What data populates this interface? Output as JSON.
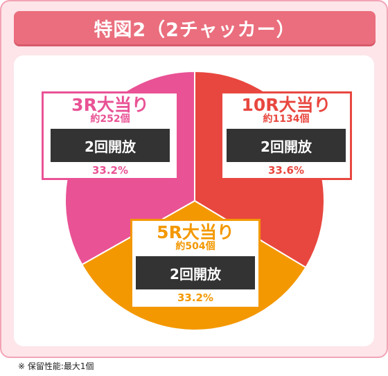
{
  "title": "特図2（2チャッカー）",
  "footnote": "※ 保留性能:最大1個",
  "chart_data": {
    "type": "pie",
    "title": "特図2（2チャッカー）",
    "slices": [
      {
        "label": "10R大当り",
        "count": "約1134個",
        "open": "2回開放",
        "pct_label": "33.6%",
        "value": 33.6,
        "color": "#e8473f"
      },
      {
        "label": "5R大当り",
        "count": "約504個",
        "open": "2回開放",
        "pct_label": "33.2%",
        "value": 33.2,
        "color": "#f39800"
      },
      {
        "label": "3R大当り",
        "count": "約252個",
        "open": "2回開放",
        "pct_label": "33.2%",
        "value": 33.2,
        "color": "#e95295"
      }
    ]
  }
}
